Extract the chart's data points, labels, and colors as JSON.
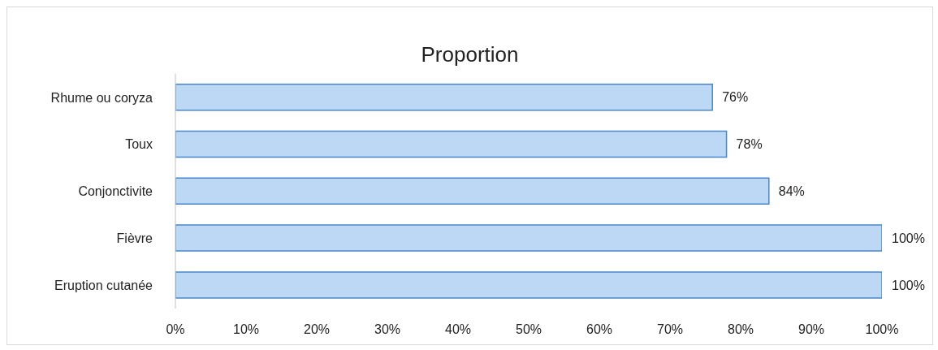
{
  "chart_data": {
    "type": "bar",
    "orientation": "horizontal",
    "title": "Proportion",
    "categories": [
      "Rhume ou coryza",
      "Toux",
      "Conjonctivite",
      "Fièvre",
      "Eruption cutanée"
    ],
    "values": [
      76,
      78,
      84,
      100,
      100
    ],
    "value_labels": [
      "76%",
      "78%",
      "84%",
      "100%",
      "100%"
    ],
    "color": "#bcd8f5",
    "xlim": [
      0,
      100
    ],
    "xticks": [
      {
        "value": 0,
        "label": "0%"
      },
      {
        "value": 10,
        "label": "10%"
      },
      {
        "value": 20,
        "label": "20%"
      },
      {
        "value": 30,
        "label": "30%"
      },
      {
        "value": 40,
        "label": "40%"
      },
      {
        "value": 50,
        "label": "50%"
      },
      {
        "value": 60,
        "label": "60%"
      },
      {
        "value": 70,
        "label": "70%"
      },
      {
        "value": 80,
        "label": "80%"
      },
      {
        "value": 90,
        "label": "90%"
      },
      {
        "value": 100,
        "label": "100%"
      }
    ],
    "grid": false
  }
}
